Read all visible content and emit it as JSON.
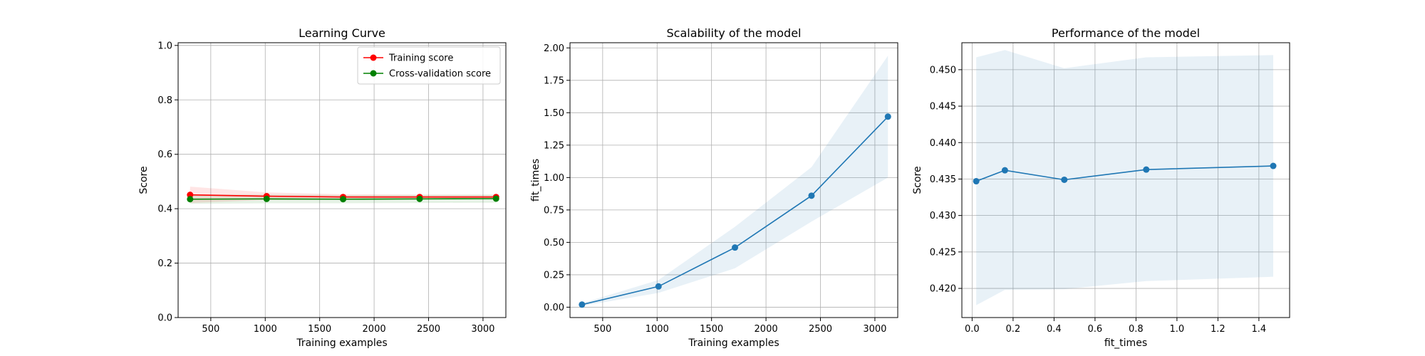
{
  "chart_data": [
    {
      "type": "line",
      "title": "Learning Curve",
      "xlabel": "Training examples",
      "ylabel": "Score",
      "xlim": [
        200,
        3210
      ],
      "ylim": [
        0.0,
        1.01
      ],
      "xticks": [
        500,
        1000,
        1500,
        2000,
        2500,
        3000
      ],
      "xtick_labels": [
        "500",
        "1000",
        "1500",
        "2000",
        "2500",
        "3000"
      ],
      "yticks": [
        0.0,
        0.2,
        0.4,
        0.6,
        0.8,
        1.0
      ],
      "ytick_labels": [
        "0.0",
        "0.2",
        "0.4",
        "0.6",
        "0.8",
        "1.0"
      ],
      "grid": true,
      "legend": "upper right",
      "x": [
        310,
        1013,
        1715,
        2418,
        3120
      ],
      "series": [
        {
          "name": "Training score",
          "color": "#ff0000",
          "values": [
            0.451,
            0.446,
            0.443,
            0.443,
            0.443
          ],
          "band_low": [
            0.421,
            0.432,
            0.433,
            0.435,
            0.436
          ],
          "band_high": [
            0.481,
            0.46,
            0.453,
            0.451,
            0.45
          ]
        },
        {
          "name": "Cross-validation score",
          "color": "#008000",
          "values": [
            0.435,
            0.436,
            0.435,
            0.436,
            0.437
          ],
          "band_low": [
            0.418,
            0.42,
            0.42,
            0.421,
            0.422
          ],
          "band_high": [
            0.452,
            0.452,
            0.45,
            0.451,
            0.452
          ]
        }
      ]
    },
    {
      "type": "line",
      "title": "Scalability of the model",
      "xlabel": "Training examples",
      "ylabel": "fit_times",
      "xlim": [
        200,
        3210
      ],
      "ylim": [
        -0.08,
        2.04
      ],
      "xticks": [
        500,
        1000,
        1500,
        2000,
        2500,
        3000
      ],
      "xtick_labels": [
        "500",
        "1000",
        "1500",
        "2000",
        "2500",
        "3000"
      ],
      "yticks": [
        0.0,
        0.25,
        0.5,
        0.75,
        1.0,
        1.25,
        1.5,
        1.75,
        2.0
      ],
      "ytick_labels": [
        "0.00",
        "0.25",
        "0.50",
        "0.75",
        "1.00",
        "1.25",
        "1.50",
        "1.75",
        "2.00"
      ],
      "grid": true,
      "x": [
        310,
        1013,
        1715,
        2418,
        3120
      ],
      "series": [
        {
          "color": "#1f77b4",
          "values": [
            0.02,
            0.16,
            0.46,
            0.86,
            1.47
          ],
          "band_low": [
            0.01,
            0.11,
            0.3,
            0.66,
            1.0
          ],
          "band_high": [
            0.03,
            0.21,
            0.62,
            1.08,
            1.94
          ]
        }
      ]
    },
    {
      "type": "line",
      "title": "Performance of the model",
      "xlabel": "fit_times",
      "ylabel": "Score",
      "xlim": [
        -0.05,
        1.55
      ],
      "ylim": [
        0.416,
        0.4537
      ],
      "xticks": [
        0.0,
        0.2,
        0.4,
        0.6,
        0.8,
        1.0,
        1.2,
        1.4
      ],
      "xtick_labels": [
        "0.0",
        "0.2",
        "0.4",
        "0.6",
        "0.8",
        "1.0",
        "1.2",
        "1.4"
      ],
      "yticks": [
        0.42,
        0.425,
        0.43,
        0.435,
        0.44,
        0.445,
        0.45
      ],
      "ytick_labels": [
        "0.420",
        "0.425",
        "0.430",
        "0.435",
        "0.440",
        "0.445",
        "0.450"
      ],
      "grid": true,
      "x": [
        0.02,
        0.16,
        0.45,
        0.85,
        1.47
      ],
      "series": [
        {
          "color": "#1f77b4",
          "values": [
            0.4347,
            0.4362,
            0.4349,
            0.4363,
            0.4368
          ],
          "band_low": [
            0.4177,
            0.4198,
            0.4199,
            0.421,
            0.4216
          ],
          "band_high": [
            0.4517,
            0.4527,
            0.4502,
            0.4517,
            0.452
          ]
        }
      ]
    }
  ]
}
